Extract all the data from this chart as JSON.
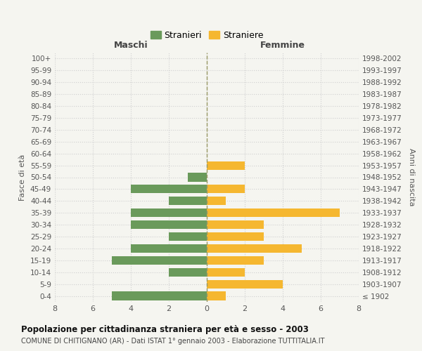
{
  "age_groups": [
    "100+",
    "95-99",
    "90-94",
    "85-89",
    "80-84",
    "75-79",
    "70-74",
    "65-69",
    "60-64",
    "55-59",
    "50-54",
    "45-49",
    "40-44",
    "35-39",
    "30-34",
    "25-29",
    "20-24",
    "15-19",
    "10-14",
    "5-9",
    "0-4"
  ],
  "birth_years": [
    "≤ 1902",
    "1903-1907",
    "1908-1912",
    "1913-1917",
    "1918-1922",
    "1923-1927",
    "1928-1932",
    "1933-1937",
    "1938-1942",
    "1943-1947",
    "1948-1952",
    "1953-1957",
    "1958-1962",
    "1963-1967",
    "1968-1972",
    "1973-1977",
    "1978-1982",
    "1983-1987",
    "1988-1992",
    "1993-1997",
    "1998-2002"
  ],
  "males": [
    0,
    0,
    0,
    0,
    0,
    0,
    0,
    0,
    0,
    0,
    1,
    4,
    2,
    4,
    4,
    2,
    4,
    5,
    2,
    0,
    5
  ],
  "females": [
    0,
    0,
    0,
    0,
    0,
    0,
    0,
    0,
    0,
    2,
    0,
    2,
    1,
    7,
    3,
    3,
    5,
    3,
    2,
    4,
    1
  ],
  "male_color": "#6a9a5b",
  "female_color": "#f5b730",
  "male_label": "Stranieri",
  "female_label": "Straniere",
  "xlim": 8,
  "title": "Popolazione per cittadinanza straniera per età e sesso - 2003",
  "subtitle": "COMUNE DI CHITIGNANO (AR) - Dati ISTAT 1° gennaio 2003 - Elaborazione TUTTITALIA.IT",
  "xlabel_left": "Maschi",
  "xlabel_right": "Femmine",
  "ylabel_left": "Fasce di età",
  "ylabel_right": "Anni di nascita",
  "bg_color": "#f5f5f0",
  "grid_color": "#d0d0d0",
  "center_line_color": "#999966"
}
